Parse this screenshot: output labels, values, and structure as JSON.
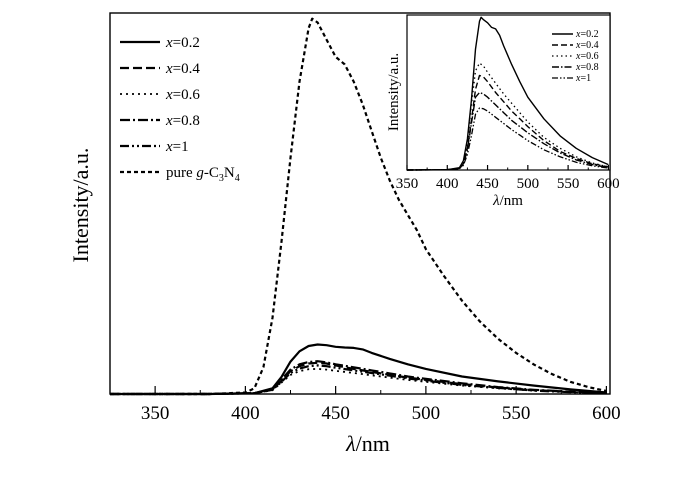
{
  "chart_data": [
    {
      "type": "line",
      "title": "",
      "xlabel_italic": "λ",
      "xlabel_rest": "/nm",
      "ylabel": "Intensity/a.u.",
      "xlim": [
        325,
        602
      ],
      "ylim": [
        0,
        1.0
      ],
      "xticks": [
        350,
        400,
        450,
        500,
        550,
        600
      ],
      "xtick_labels": [
        "350",
        "400",
        "450",
        "500",
        "550",
        "600"
      ],
      "legend_position": "top-left",
      "series": [
        {
          "var": "x",
          "eq": "=0.2",
          "dash": "none",
          "width": 2.2,
          "x": [
            325,
            380,
            405,
            415,
            420,
            425,
            430,
            435,
            440,
            445,
            450,
            455,
            460,
            465,
            470,
            480,
            490,
            500,
            520,
            540,
            560,
            580,
            600
          ],
          "y": [
            0.0,
            0.0,
            0.002,
            0.015,
            0.045,
            0.085,
            0.112,
            0.126,
            0.13,
            0.128,
            0.124,
            0.122,
            0.121,
            0.117,
            0.108,
            0.092,
            0.078,
            0.066,
            0.046,
            0.033,
            0.022,
            0.012,
            0.004
          ]
        },
        {
          "var": "x",
          "eq": "=0.4",
          "dash": "9,4",
          "width": 2.2,
          "x": [
            325,
            380,
            405,
            415,
            420,
            425,
            430,
            435,
            440,
            445,
            450,
            460,
            470,
            480,
            490,
            500,
            520,
            540,
            560,
            580,
            600
          ],
          "y": [
            0.0,
            0.0,
            0.002,
            0.012,
            0.035,
            0.06,
            0.073,
            0.08,
            0.082,
            0.08,
            0.075,
            0.066,
            0.058,
            0.05,
            0.043,
            0.037,
            0.026,
            0.017,
            0.01,
            0.006,
            0.003
          ]
        },
        {
          "var": "x",
          "eq": "=0.6",
          "dash": "2,4",
          "width": 1.8,
          "x": [
            325,
            380,
            405,
            415,
            420,
            425,
            430,
            435,
            440,
            445,
            450,
            460,
            470,
            480,
            490,
            500,
            520,
            540,
            560,
            580,
            600
          ],
          "y": [
            0.0,
            0.0,
            0.002,
            0.01,
            0.03,
            0.05,
            0.06,
            0.065,
            0.066,
            0.064,
            0.061,
            0.055,
            0.049,
            0.043,
            0.037,
            0.032,
            0.022,
            0.015,
            0.009,
            0.005,
            0.002
          ]
        },
        {
          "var": "x",
          "eq": "=0.8",
          "dash": "10,3,2,3",
          "width": 2.2,
          "x": [
            325,
            380,
            405,
            415,
            420,
            425,
            430,
            435,
            440,
            445,
            450,
            460,
            470,
            480,
            490,
            500,
            520,
            540,
            560,
            580,
            600
          ],
          "y": [
            0.0,
            0.0,
            0.002,
            0.013,
            0.038,
            0.064,
            0.078,
            0.084,
            0.086,
            0.083,
            0.078,
            0.07,
            0.062,
            0.054,
            0.046,
            0.04,
            0.028,
            0.018,
            0.011,
            0.006,
            0.003
          ]
        },
        {
          "var": "x",
          "eq": "=1",
          "dash": "9,3,2,3,2,3",
          "width": 2.2,
          "x": [
            325,
            380,
            405,
            415,
            420,
            425,
            430,
            435,
            440,
            445,
            450,
            460,
            470,
            480,
            490,
            500,
            520,
            540,
            560,
            580,
            600
          ],
          "y": [
            0.0,
            0.0,
            0.002,
            0.011,
            0.032,
            0.055,
            0.067,
            0.073,
            0.075,
            0.073,
            0.069,
            0.062,
            0.055,
            0.048,
            0.041,
            0.035,
            0.024,
            0.016,
            0.009,
            0.005,
            0.002
          ]
        },
        {
          "pure": "pure ",
          "gvar": "g",
          "formula": "-C",
          "sub1": "3",
          "formula_n": "N",
          "sub2": "4",
          "dash": "4,3",
          "width": 2.2,
          "x": [
            325,
            380,
            400,
            405,
            410,
            415,
            420,
            425,
            430,
            435,
            437,
            440,
            445,
            450,
            455,
            460,
            465,
            470,
            475,
            480,
            485,
            490,
            495,
            500,
            510,
            520,
            530,
            540,
            550,
            560,
            570,
            580,
            590,
            600
          ],
          "y": [
            0.0,
            0.0,
            0.004,
            0.015,
            0.07,
            0.2,
            0.4,
            0.62,
            0.82,
            0.96,
            0.985,
            0.975,
            0.93,
            0.885,
            0.865,
            0.82,
            0.76,
            0.69,
            0.62,
            0.56,
            0.51,
            0.47,
            0.43,
            0.38,
            0.31,
            0.245,
            0.19,
            0.145,
            0.108,
            0.077,
            0.052,
            0.032,
            0.018,
            0.008
          ]
        }
      ]
    },
    {
      "type": "line",
      "title": "",
      "xlabel_italic": "λ",
      "xlabel_rest": "/nm",
      "ylabel": "Intensity/a.u.",
      "xlim": [
        350,
        602
      ],
      "ylim": [
        0,
        1.0
      ],
      "xticks": [
        350,
        400,
        450,
        500,
        550,
        600
      ],
      "xtick_labels": [
        "350",
        "400",
        "450",
        "500",
        "550",
        "600"
      ],
      "legend_position": "top-right",
      "series": [
        {
          "var": "x",
          "eq": "=0.2",
          "dash": "none",
          "width": 1.4,
          "x": [
            350,
            400,
            415,
            420,
            425,
            430,
            435,
            440,
            442,
            445,
            450,
            455,
            460,
            465,
            470,
            480,
            490,
            500,
            520,
            540,
            560,
            580,
            600
          ],
          "y": [
            0.0,
            0.002,
            0.015,
            0.06,
            0.2,
            0.45,
            0.78,
            0.96,
            0.985,
            0.97,
            0.95,
            0.92,
            0.91,
            0.87,
            0.8,
            0.68,
            0.57,
            0.47,
            0.33,
            0.22,
            0.14,
            0.08,
            0.035
          ]
        },
        {
          "var": "x",
          "eq": "=0.4",
          "dash": "6,3",
          "width": 1.4,
          "x": [
            350,
            400,
            415,
            420,
            425,
            430,
            435,
            440,
            445,
            450,
            460,
            470,
            480,
            490,
            500,
            520,
            540,
            560,
            580,
            600
          ],
          "y": [
            0.0,
            0.002,
            0.01,
            0.04,
            0.14,
            0.32,
            0.52,
            0.61,
            0.6,
            0.57,
            0.5,
            0.44,
            0.38,
            0.33,
            0.28,
            0.19,
            0.12,
            0.075,
            0.04,
            0.02
          ]
        },
        {
          "var": "x",
          "eq": "=0.6",
          "dash": "1.5,3",
          "width": 1.3,
          "x": [
            350,
            400,
            415,
            420,
            425,
            430,
            435,
            440,
            445,
            450,
            460,
            470,
            480,
            490,
            500,
            520,
            540,
            560,
            580,
            600
          ],
          "y": [
            0.0,
            0.002,
            0.01,
            0.05,
            0.18,
            0.42,
            0.64,
            0.69,
            0.67,
            0.63,
            0.56,
            0.49,
            0.43,
            0.37,
            0.31,
            0.21,
            0.14,
            0.085,
            0.045,
            0.02
          ]
        },
        {
          "var": "x",
          "eq": "=0.8",
          "dash": "7,2,1.5,2",
          "width": 1.4,
          "x": [
            350,
            400,
            415,
            420,
            425,
            430,
            435,
            440,
            445,
            450,
            460,
            470,
            480,
            490,
            500,
            520,
            540,
            560,
            580,
            600
          ],
          "y": [
            0.0,
            0.002,
            0.01,
            0.04,
            0.13,
            0.3,
            0.47,
            0.5,
            0.49,
            0.47,
            0.42,
            0.37,
            0.32,
            0.28,
            0.24,
            0.17,
            0.11,
            0.065,
            0.035,
            0.015
          ]
        },
        {
          "var": "x",
          "eq": "=1",
          "dash": "6,2,1.5,2,1.5,2",
          "width": 1.3,
          "x": [
            350,
            400,
            415,
            420,
            425,
            430,
            435,
            440,
            445,
            450,
            460,
            470,
            480,
            490,
            500,
            520,
            540,
            560,
            580,
            600
          ],
          "y": [
            0.0,
            0.002,
            0.008,
            0.03,
            0.1,
            0.22,
            0.36,
            0.4,
            0.395,
            0.38,
            0.34,
            0.3,
            0.26,
            0.225,
            0.19,
            0.13,
            0.085,
            0.05,
            0.027,
            0.012
          ]
        }
      ]
    }
  ]
}
